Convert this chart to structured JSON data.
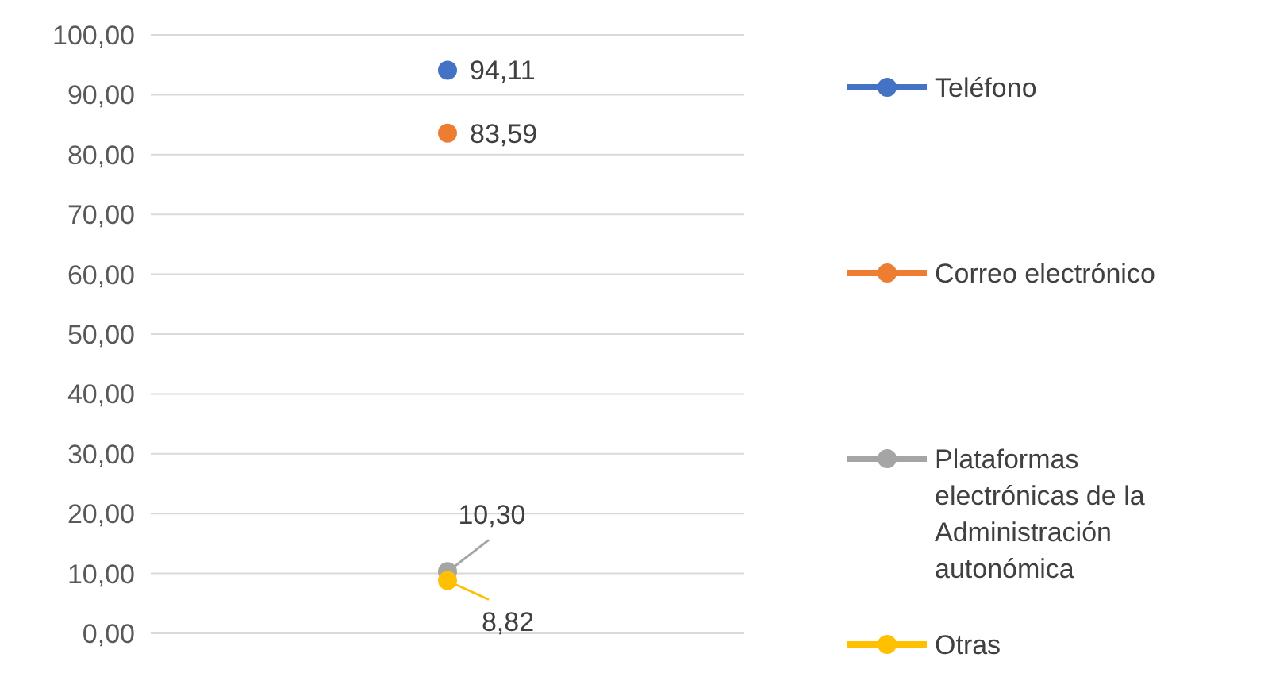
{
  "chart_data": {
    "type": "line",
    "categories": [
      null
    ],
    "series": [
      {
        "name": "Teléfono",
        "color": "#4472c4",
        "values": [
          94.11
        ],
        "value_labels": [
          "94,11"
        ]
      },
      {
        "name": "Correo electrónico",
        "color": "#ed7d31",
        "values": [
          83.59
        ],
        "value_labels": [
          "83,59"
        ]
      },
      {
        "name": "Plataformas electrónicas de la Administración autonómica",
        "color": "#a5a5a5",
        "values": [
          10.3
        ],
        "value_labels": [
          "10,30"
        ]
      },
      {
        "name": "Otras",
        "color": "#ffc000",
        "values": [
          8.82
        ],
        "value_labels": [
          "8,82"
        ]
      }
    ],
    "ylim": [
      0,
      100
    ],
    "yticks": [
      {
        "value": 0,
        "label": "0,00"
      },
      {
        "value": 10,
        "label": "10,00"
      },
      {
        "value": 20,
        "label": "20,00"
      },
      {
        "value": 30,
        "label": "30,00"
      },
      {
        "value": 40,
        "label": "40,00"
      },
      {
        "value": 50,
        "label": "50,00"
      },
      {
        "value": 60,
        "label": "60,00"
      },
      {
        "value": 70,
        "label": "70,00"
      },
      {
        "value": 80,
        "label": "80,00"
      },
      {
        "value": 90,
        "label": "90,00"
      },
      {
        "value": 100,
        "label": "100,00"
      }
    ],
    "grid": "y",
    "legend": "right",
    "marker": "circle"
  }
}
